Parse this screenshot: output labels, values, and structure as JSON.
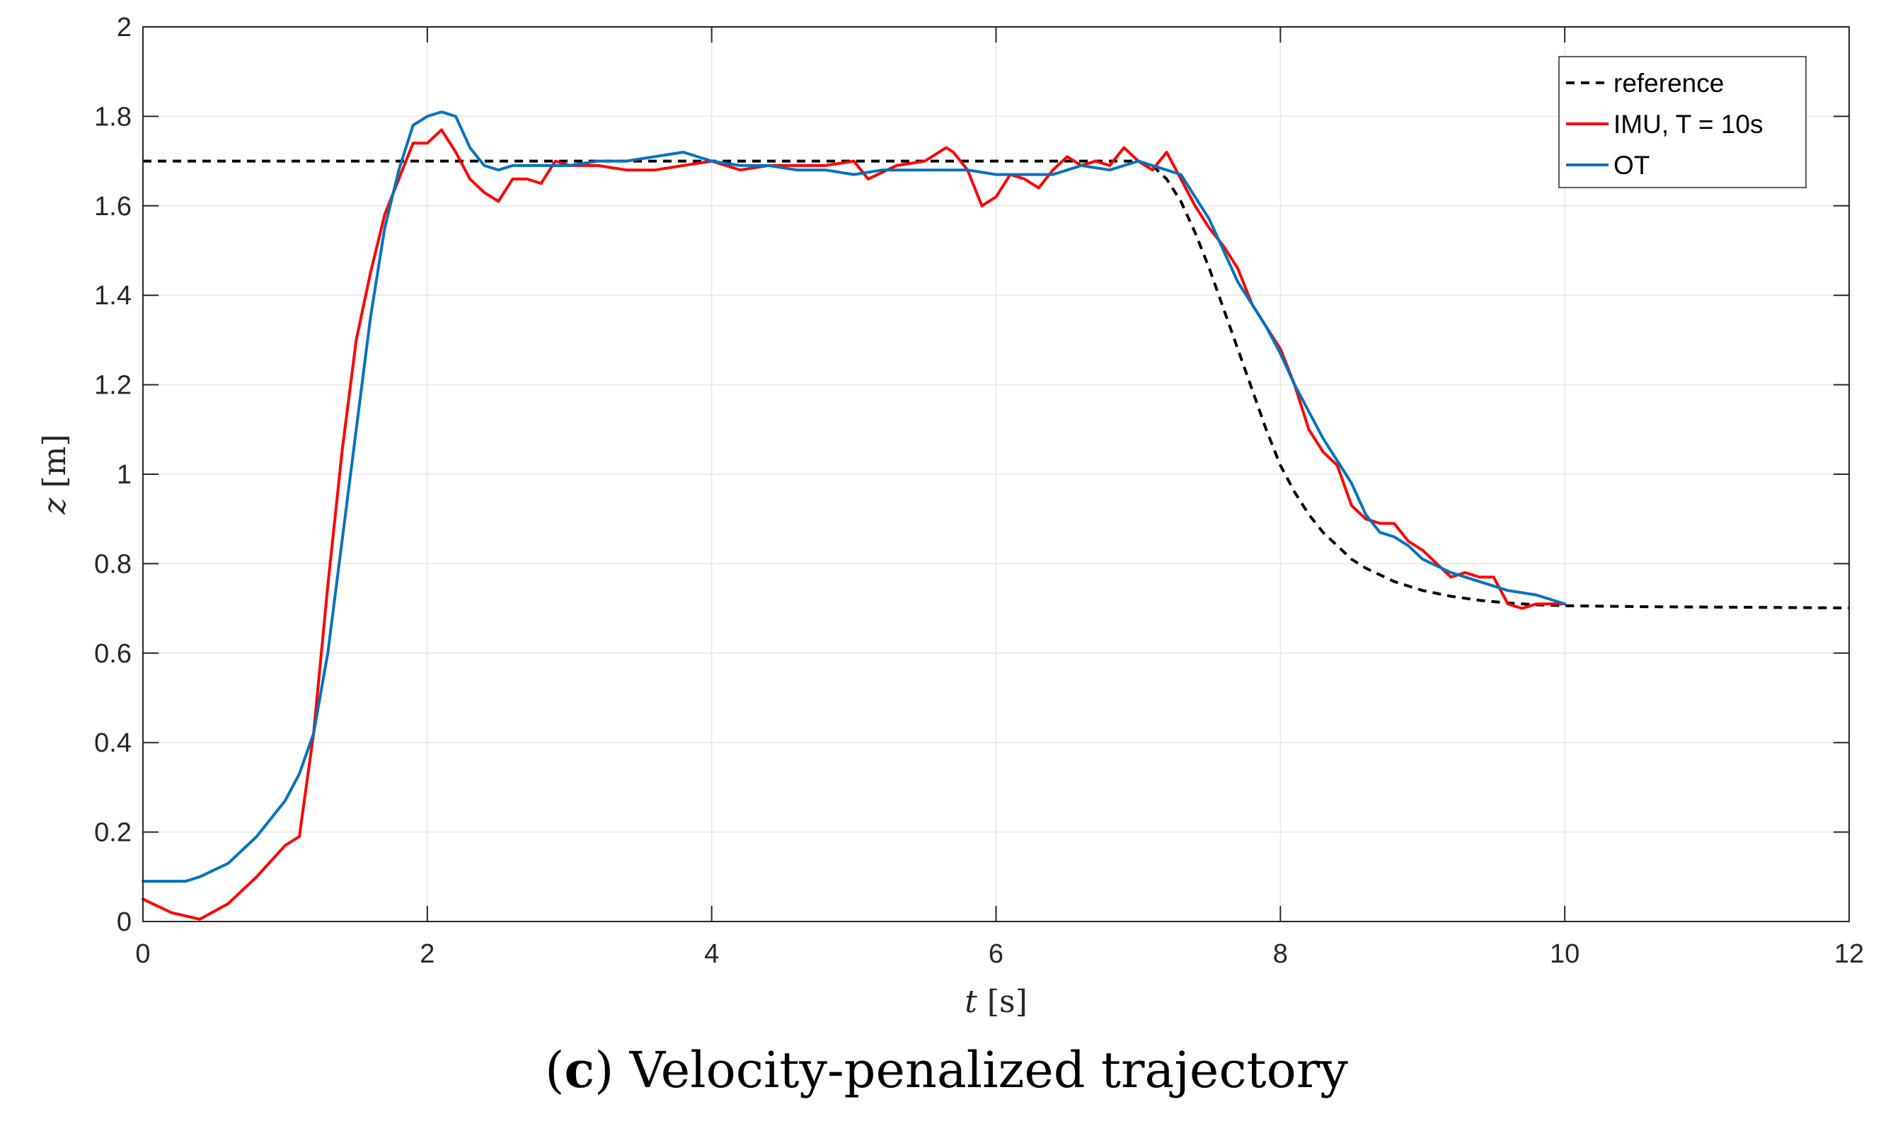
{
  "caption": {
    "letter": "c",
    "text": "Velocity-penalized trajectory"
  },
  "chart_data": {
    "type": "line",
    "xlabel_var": "t",
    "xlabel_unit": "[s]",
    "ylabel_var": "z",
    "ylabel_unit": "[m]",
    "xlim": [
      0,
      12
    ],
    "ylim": [
      0,
      2
    ],
    "xticks": [
      0,
      2,
      4,
      6,
      8,
      10,
      12
    ],
    "xtick_labels": [
      "0",
      "2",
      "4",
      "6",
      "8",
      "10",
      "12"
    ],
    "yticks": [
      0,
      0.2,
      0.4,
      0.6,
      0.8,
      1,
      1.2,
      1.4,
      1.6,
      1.8,
      2
    ],
    "ytick_labels": [
      "0",
      "0.2",
      "0.4",
      "0.6",
      "0.8",
      "1",
      "1.2",
      "1.4",
      "1.6",
      "1.8",
      "2"
    ],
    "grid": true,
    "legend_position": "top-right",
    "series": [
      {
        "name": "reference",
        "color": "#000000",
        "style": "dashed",
        "x": [
          0,
          7.0,
          7.1,
          7.2,
          7.3,
          7.4,
          7.5,
          7.6,
          7.7,
          7.8,
          7.9,
          8.0,
          8.1,
          8.2,
          8.3,
          8.4,
          8.5,
          8.6,
          8.7,
          8.8,
          8.9,
          9.0,
          9.2,
          9.4,
          9.6,
          9.8,
          10.0,
          10.5,
          11.0,
          11.5,
          12.0
        ],
        "y": [
          1.7,
          1.7,
          1.69,
          1.66,
          1.61,
          1.54,
          1.46,
          1.37,
          1.28,
          1.19,
          1.1,
          1.02,
          0.96,
          0.91,
          0.87,
          0.84,
          0.81,
          0.79,
          0.775,
          0.76,
          0.75,
          0.74,
          0.727,
          0.718,
          0.712,
          0.708,
          0.706,
          0.704,
          0.703,
          0.702,
          0.701
        ]
      },
      {
        "name": "IMU, T = 10s",
        "color": "#ff0000",
        "style": "solid",
        "x": [
          0,
          0.2,
          0.4,
          0.6,
          0.8,
          1.0,
          1.1,
          1.2,
          1.3,
          1.4,
          1.5,
          1.6,
          1.7,
          1.8,
          1.9,
          2.0,
          2.1,
          2.2,
          2.3,
          2.4,
          2.5,
          2.6,
          2.7,
          2.8,
          2.9,
          3.0,
          3.2,
          3.4,
          3.6,
          3.8,
          4.0,
          4.2,
          4.4,
          4.6,
          4.8,
          5.0,
          5.1,
          5.3,
          5.5,
          5.65,
          5.7,
          5.8,
          5.9,
          6.0,
          6.1,
          6.2,
          6.3,
          6.4,
          6.5,
          6.6,
          6.7,
          6.8,
          6.9,
          7.0,
          7.1,
          7.2,
          7.3,
          7.4,
          7.5,
          7.6,
          7.7,
          7.8,
          7.9,
          8.0,
          8.1,
          8.2,
          8.3,
          8.4,
          8.5,
          8.6,
          8.7,
          8.8,
          8.9,
          9.0,
          9.1,
          9.2,
          9.3,
          9.4,
          9.5,
          9.6,
          9.7,
          9.8,
          9.9,
          10.0
        ],
        "y": [
          0.05,
          0.02,
          0.005,
          0.04,
          0.1,
          0.17,
          0.19,
          0.42,
          0.75,
          1.05,
          1.3,
          1.45,
          1.58,
          1.66,
          1.74,
          1.74,
          1.77,
          1.72,
          1.66,
          1.63,
          1.61,
          1.66,
          1.66,
          1.65,
          1.7,
          1.69,
          1.69,
          1.68,
          1.68,
          1.69,
          1.7,
          1.68,
          1.69,
          1.69,
          1.69,
          1.7,
          1.66,
          1.69,
          1.7,
          1.73,
          1.72,
          1.68,
          1.6,
          1.62,
          1.67,
          1.66,
          1.64,
          1.68,
          1.71,
          1.69,
          1.7,
          1.69,
          1.73,
          1.7,
          1.68,
          1.72,
          1.66,
          1.6,
          1.55,
          1.51,
          1.46,
          1.38,
          1.33,
          1.28,
          1.2,
          1.1,
          1.05,
          1.02,
          0.93,
          0.9,
          0.89,
          0.89,
          0.85,
          0.83,
          0.8,
          0.77,
          0.78,
          0.77,
          0.77,
          0.71,
          0.7,
          0.71,
          0.71,
          0.71
        ]
      },
      {
        "name": "OT",
        "color": "#0072bd",
        "style": "solid",
        "x": [
          0,
          0.2,
          0.3,
          0.4,
          0.6,
          0.8,
          1.0,
          1.1,
          1.2,
          1.3,
          1.4,
          1.5,
          1.6,
          1.7,
          1.8,
          1.9,
          2.0,
          2.1,
          2.2,
          2.3,
          2.4,
          2.5,
          2.6,
          2.8,
          3.0,
          3.2,
          3.4,
          3.6,
          3.8,
          4.0,
          4.2,
          4.4,
          4.6,
          4.8,
          5.0,
          5.2,
          5.4,
          5.6,
          5.8,
          6.0,
          6.2,
          6.4,
          6.6,
          6.8,
          7.0,
          7.2,
          7.3,
          7.4,
          7.5,
          7.6,
          7.7,
          7.8,
          7.9,
          8.0,
          8.1,
          8.2,
          8.3,
          8.4,
          8.5,
          8.6,
          8.7,
          8.8,
          8.9,
          9.0,
          9.2,
          9.4,
          9.6,
          9.8,
          10.0
        ],
        "y": [
          0.09,
          0.09,
          0.09,
          0.1,
          0.13,
          0.19,
          0.27,
          0.33,
          0.42,
          0.6,
          0.85,
          1.1,
          1.35,
          1.55,
          1.68,
          1.78,
          1.8,
          1.81,
          1.8,
          1.73,
          1.69,
          1.68,
          1.69,
          1.69,
          1.69,
          1.7,
          1.7,
          1.71,
          1.72,
          1.7,
          1.69,
          1.69,
          1.68,
          1.68,
          1.67,
          1.68,
          1.68,
          1.68,
          1.68,
          1.67,
          1.67,
          1.67,
          1.69,
          1.68,
          1.7,
          1.68,
          1.67,
          1.62,
          1.57,
          1.5,
          1.43,
          1.38,
          1.33,
          1.27,
          1.2,
          1.14,
          1.08,
          1.03,
          0.98,
          0.91,
          0.87,
          0.86,
          0.84,
          0.81,
          0.78,
          0.76,
          0.74,
          0.73,
          0.71
        ]
      }
    ]
  }
}
